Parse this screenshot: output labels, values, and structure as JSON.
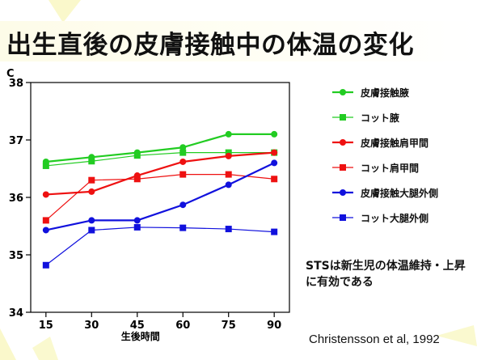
{
  "title": "出生直後の皮膚接触中の体温の変化",
  "unit_label": "C",
  "note": "STSは新生児の体温維持・上昇に有効である",
  "citation": "Christensson et al, 1992",
  "chart_data": {
    "type": "line",
    "title": "出生直後の皮膚接触中の体温の変化",
    "xlabel": "生後時間",
    "ylabel": "C",
    "x": [
      15,
      30,
      45,
      60,
      75,
      90
    ],
    "x_tick_labels": [
      "15",
      "30",
      "45",
      "60",
      "75",
      "90"
    ],
    "ylim": [
      34,
      38
    ],
    "y_ticks": [
      34,
      35,
      36,
      37,
      38
    ],
    "grid": false,
    "legend_position": "right",
    "series": [
      {
        "name": "皮膚接触腋",
        "marker": "circle",
        "color": "#22cc22",
        "width": 2.2,
        "values": [
          36.62,
          36.7,
          36.78,
          36.87,
          37.1,
          37.1
        ]
      },
      {
        "name": "コット腋",
        "marker": "square",
        "color": "#22cc22",
        "width": 1.2,
        "values": [
          36.55,
          36.63,
          36.73,
          36.78,
          36.78,
          36.78
        ]
      },
      {
        "name": "皮膚接触肩甲間",
        "marker": "circle",
        "color": "#ee1111",
        "width": 2.2,
        "values": [
          36.05,
          36.1,
          36.38,
          36.62,
          36.72,
          36.78
        ]
      },
      {
        "name": "コット肩甲間",
        "marker": "square",
        "color": "#ee1111",
        "width": 1.2,
        "values": [
          35.6,
          36.3,
          36.32,
          36.4,
          36.4,
          36.32
        ]
      },
      {
        "name": "皮膚接触大腿外側",
        "marker": "circle",
        "color": "#1111dd",
        "width": 2.2,
        "values": [
          35.43,
          35.6,
          35.6,
          35.87,
          36.22,
          36.6
        ]
      },
      {
        "name": "コット大腿外側",
        "marker": "square",
        "color": "#1111dd",
        "width": 1.2,
        "values": [
          34.82,
          35.43,
          35.48,
          35.47,
          35.45,
          35.4
        ]
      }
    ]
  }
}
